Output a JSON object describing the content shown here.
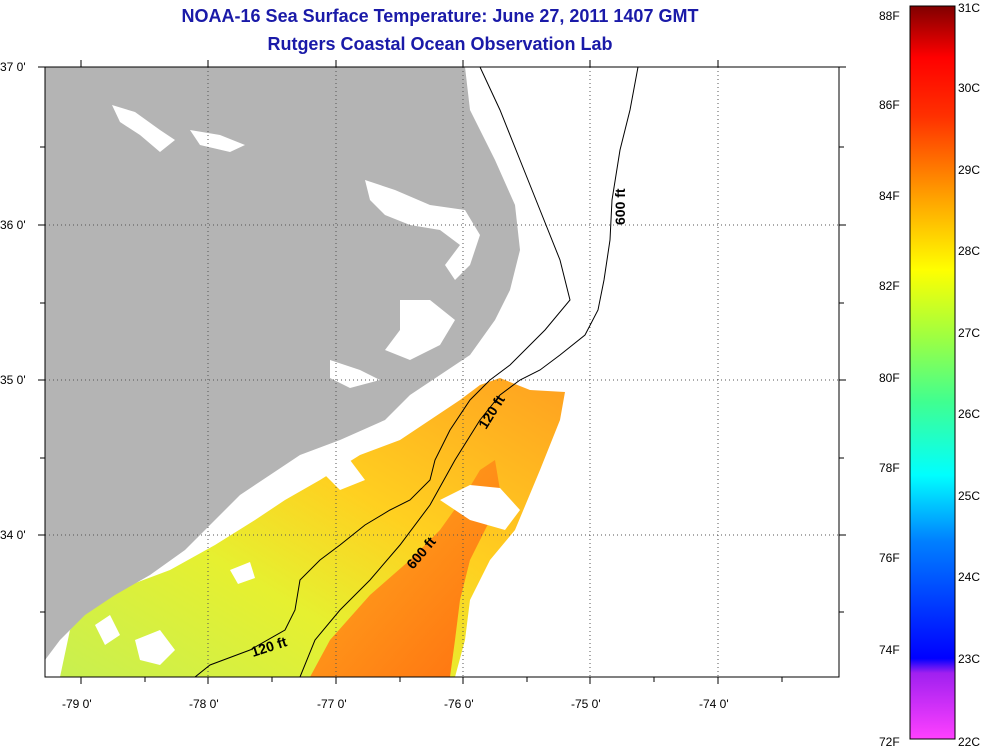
{
  "header": {
    "title": "NOAA-16 Sea Surface Temperature:  June 27, 2011 1407 GMT",
    "subtitle": "Rutgers Coastal Ocean Observation Lab"
  },
  "axes": {
    "lat_labels": [
      "37 0'",
      "36 0'",
      "35 0'",
      "34 0'"
    ],
    "lon_labels": [
      "-79 0'",
      "-78 0'",
      "-77 0'",
      "-76 0'",
      "-75 0'",
      "-74 0'"
    ]
  },
  "contours": {
    "label_600_a": "600 ft",
    "label_120_a": "120 ft",
    "label_600_b": "600 ft",
    "label_120_b": "120 ft"
  },
  "colorbar": {
    "fahrenheit_labels": [
      "88F",
      "86F",
      "84F",
      "82F",
      "80F",
      "78F",
      "76F",
      "74F",
      "72F"
    ],
    "celsius_labels": [
      "31C",
      "30C",
      "29C",
      "28C",
      "27C",
      "26C",
      "25C",
      "24C",
      "23C",
      "22C"
    ],
    "range_c": [
      22,
      31
    ],
    "colors": [
      "#ff40ff",
      "#8000ff",
      "#0000ff",
      "#0080ff",
      "#00ffff",
      "#40ff80",
      "#c0ff40",
      "#ffff00",
      "#ffa000",
      "#ff4000",
      "#ff0000",
      "#800000"
    ]
  },
  "colors": {
    "land": "#b4b4b4",
    "title": "#1a1aa8",
    "ocean": "#ffffff",
    "grid": "#000000"
  }
}
